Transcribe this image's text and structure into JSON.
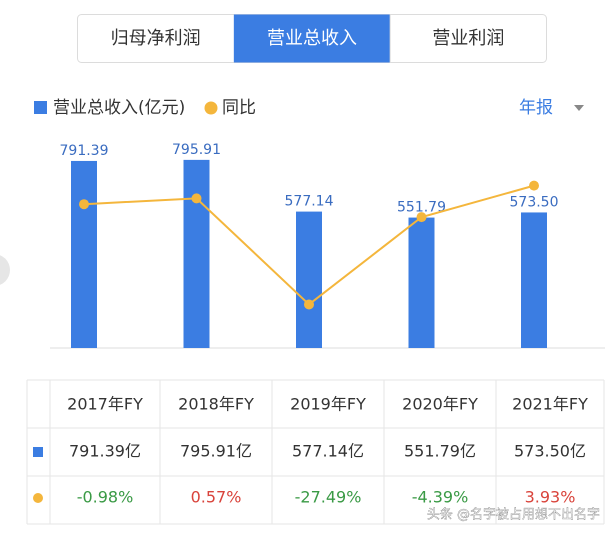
{
  "tabs": {
    "items": [
      "归母净利润",
      "营业总收入",
      "营业利润"
    ],
    "active": 1
  },
  "period_selector": "年报",
  "chart_data": {
    "type": "bar_line",
    "categories": [
      "2017年FY",
      "2018年FY",
      "2019年FY",
      "2020年FY",
      "2021年FY"
    ],
    "series": [
      {
        "name": "营业总收入(亿元)",
        "type": "bar",
        "color": "#3b7de2",
        "values": [
          791.39,
          795.91,
          577.14,
          551.79,
          573.5
        ],
        "value_labels": [
          "791.39",
          "795.91",
          "577.14",
          "551.79",
          "573.50"
        ]
      },
      {
        "name": "同比",
        "type": "line",
        "axis": "y2",
        "color": "#f4b63c",
        "values": [
          -0.98,
          0.57,
          -27.49,
          -4.39,
          3.93
        ]
      }
    ],
    "ylim": [
      0,
      880
    ],
    "y2lim": [
      -39,
      16
    ]
  },
  "table": {
    "rows": [
      [
        "791.39亿",
        "795.91亿",
        "577.14亿",
        "551.79亿",
        "573.50亿"
      ],
      [
        "-0.98%",
        "0.57%",
        "-27.49%",
        "-4.39%",
        "3.93%"
      ]
    ]
  },
  "watermark": "头条 @名字被占用想不出名字"
}
